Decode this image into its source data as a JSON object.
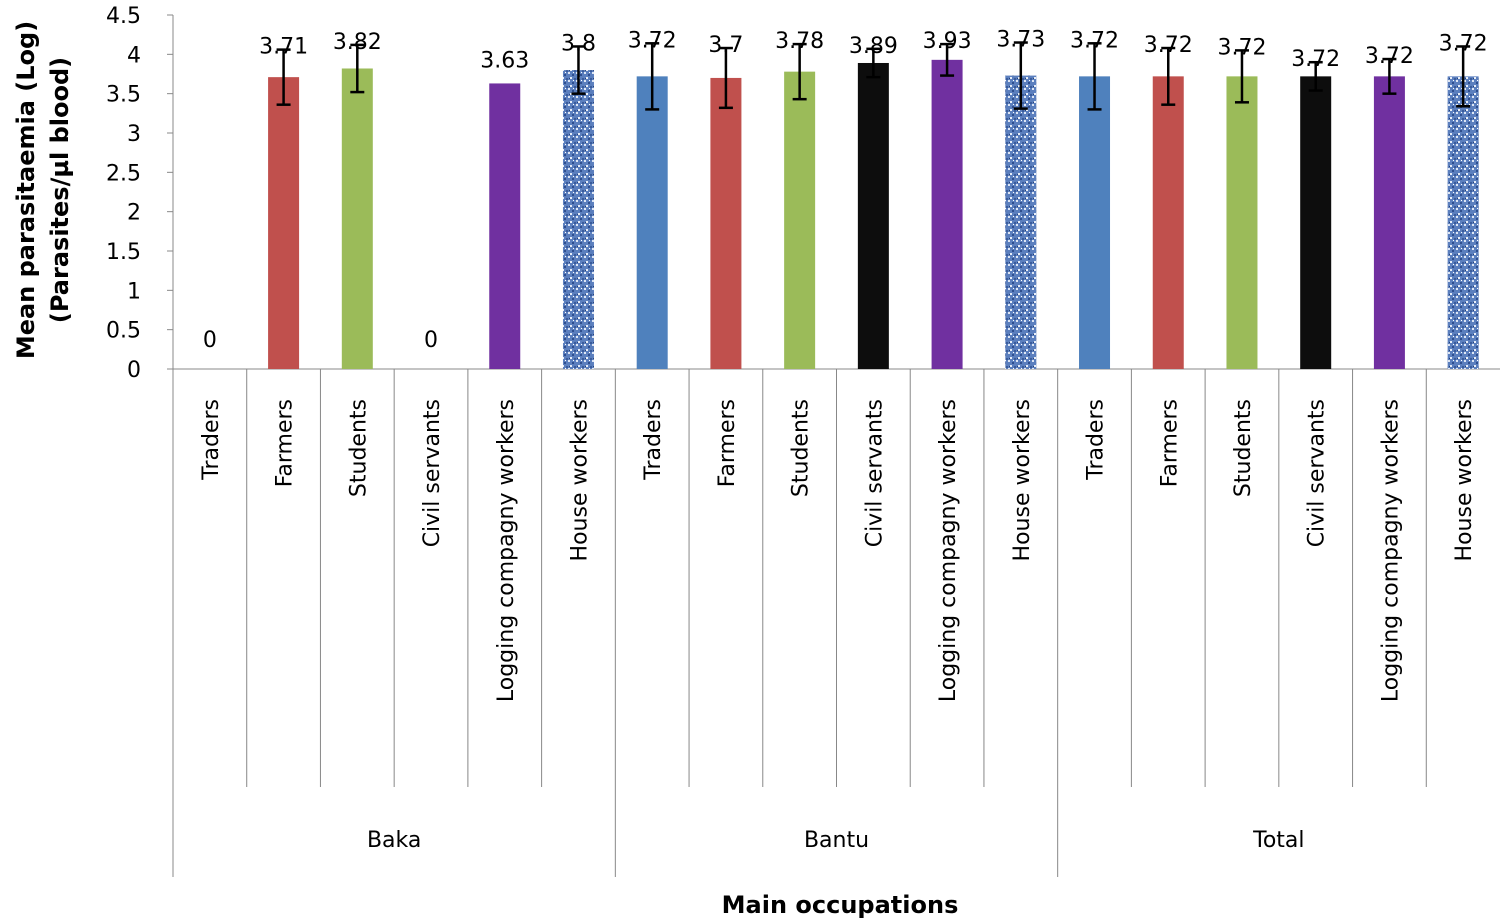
{
  "chart_data": {
    "type": "bar",
    "title": "",
    "xlabel": "Main occupations",
    "ylabel": [
      "Mean parasitaemia (Log)",
      "(Parasites/µl blood)"
    ],
    "ylim": [
      0,
      4.5
    ],
    "yticks": [
      "0",
      "0.5",
      "1",
      "1.5",
      "2",
      "2.5",
      "3",
      "3.5",
      "4",
      "4.5"
    ],
    "groups": [
      "Baka",
      "Bantu",
      "Total"
    ],
    "categories": [
      "Traders",
      "Farmers",
      "Students",
      "Civil servants",
      "Logging compagny workers",
      "House workers"
    ],
    "series": [
      {
        "group": "Baka",
        "values": [
          0,
          3.71,
          3.82,
          0,
          3.63,
          3.8
        ],
        "labels": [
          "0",
          "3.71",
          "3.82",
          "0",
          "3.63",
          "3.8"
        ],
        "errors": [
          null,
          0.35,
          0.3,
          null,
          null,
          0.3
        ]
      },
      {
        "group": "Bantu",
        "values": [
          3.72,
          3.7,
          3.78,
          3.89,
          3.93,
          3.73
        ],
        "labels": [
          "3.72",
          "3.7",
          "3.78",
          "3.89",
          "3.93",
          "3.73"
        ],
        "errors": [
          0.42,
          0.38,
          0.35,
          0.18,
          0.2,
          0.42
        ]
      },
      {
        "group": "Total",
        "values": [
          3.72,
          3.72,
          3.72,
          3.72,
          3.72,
          3.72
        ],
        "labels": [
          "3.72",
          "3.72",
          "3.72",
          "3.72",
          "3.72",
          "3.72"
        ],
        "errors": [
          0.42,
          0.36,
          0.33,
          0.18,
          0.22,
          0.38
        ]
      }
    ],
    "colors": {
      "Traders": "#4F81BD",
      "Farmers": "#C0504D",
      "Students": "#9BBB59",
      "Civil servants": "#0D0D0D",
      "Logging compagny workers": "#7030A0",
      "House workers": "#4A6EA8"
    }
  }
}
